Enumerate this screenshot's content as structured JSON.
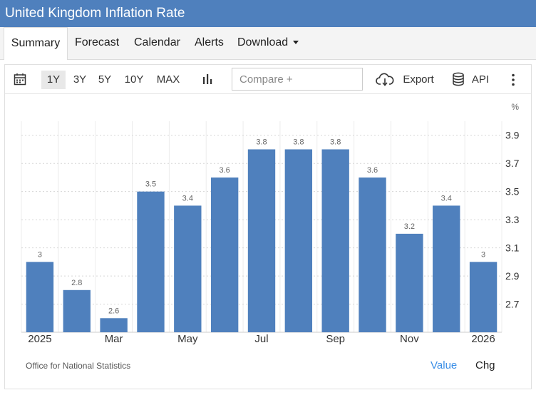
{
  "header": {
    "title": "United Kingdom Inflation Rate"
  },
  "tabs": [
    {
      "label": "Summary",
      "active": true
    },
    {
      "label": "Forecast"
    },
    {
      "label": "Calendar"
    },
    {
      "label": "Alerts"
    },
    {
      "label": "Download"
    }
  ],
  "toolbar": {
    "ranges": [
      "1Y",
      "3Y",
      "5Y",
      "10Y",
      "MAX"
    ],
    "selected_range": "1Y",
    "compare_placeholder": "Compare +",
    "export_label": "Export",
    "api_label": "API",
    "icons": [
      "calendar-icon",
      "bar-chart-icon",
      "cloud-download-icon",
      "database-icon",
      "more-vertical-icon"
    ]
  },
  "footer": {
    "source": "Office for National Statistics",
    "value_label": "Value",
    "chg_label": "Chg"
  },
  "colors": {
    "header": "#4f80bd",
    "bar": "#4f80bd",
    "value_link": "#3a8ee6"
  },
  "chart_data": {
    "type": "bar",
    "unit": "%",
    "categories": [
      "2025-01",
      "2025-02",
      "2025-03",
      "2025-04",
      "2025-05",
      "2025-06",
      "2025-07",
      "2025-08",
      "2025-09",
      "2025-10",
      "2025-11",
      "2025-12",
      "2026-01"
    ],
    "values": [
      3,
      2.8,
      2.6,
      3.5,
      3.4,
      3.6,
      3.8,
      3.8,
      3.8,
      3.6,
      3.2,
      3.4,
      3
    ],
    "x_tick_labels": [
      {
        "category": "2025-01",
        "label": "2025"
      },
      {
        "category": "2025-03",
        "label": "Mar"
      },
      {
        "category": "2025-05",
        "label": "May"
      },
      {
        "category": "2025-07",
        "label": "Jul"
      },
      {
        "category": "2025-09",
        "label": "Sep"
      },
      {
        "category": "2025-11",
        "label": "Nov"
      },
      {
        "category": "2026-01",
        "label": "2026"
      }
    ],
    "y_ticks": [
      2.7,
      2.9,
      3.1,
      3.3,
      3.5,
      3.7,
      3.9
    ],
    "ylim": [
      2.5,
      4.0
    ],
    "y_axis_side": "right",
    "grid": true
  }
}
